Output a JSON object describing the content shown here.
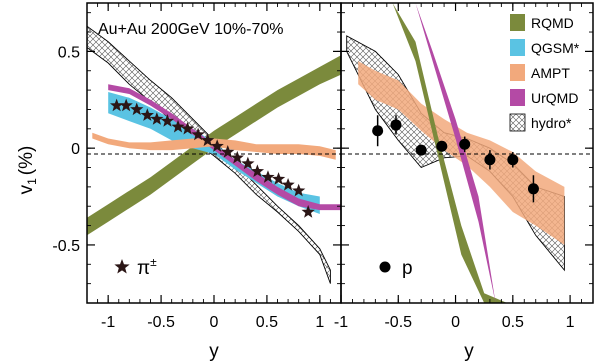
{
  "figure": {
    "ylabel": "v",
    "ylabel_sub": "1",
    "ylabel_unit": "(%)"
  },
  "chart_data": [
    {
      "type": "band",
      "panel": "left",
      "title": "Au+Au 200GeV 10%-70%",
      "xlabel": "y",
      "xlim": [
        -1.2,
        1.2
      ],
      "ylim": [
        -0.8,
        0.75
      ],
      "xticks": [
        -1,
        -0.5,
        0,
        0.5,
        1
      ],
      "xtick_labels": [
        "-1",
        "-0.5",
        "0",
        "0.5",
        "1"
      ],
      "yticks": [
        -0.5,
        0,
        0.5
      ],
      "ytick_labels": [
        "-0.5",
        "0",
        "0.5"
      ],
      "zero_line": true,
      "bands": [
        {
          "model": "hydro",
          "x": [
            -1.2,
            -1.0,
            -0.8,
            -0.6,
            -0.4,
            -0.2,
            0.0,
            0.2,
            0.4,
            0.6,
            0.8,
            1.0,
            1.1
          ],
          "upper": [
            0.63,
            0.55,
            0.45,
            0.35,
            0.26,
            0.15,
            0.04,
            -0.08,
            -0.19,
            -0.3,
            -0.4,
            -0.52,
            -0.63
          ],
          "lower": [
            0.52,
            0.44,
            0.33,
            0.24,
            0.14,
            0.04,
            -0.04,
            -0.13,
            -0.24,
            -0.33,
            -0.43,
            -0.55,
            -0.7
          ]
        },
        {
          "model": "RQMD",
          "x": [
            -1.2,
            -1.0,
            -0.8,
            -0.6,
            -0.4,
            -0.2,
            0.0,
            0.2,
            0.4,
            0.6,
            0.8,
            1.0,
            1.2
          ],
          "upper": [
            -0.36,
            -0.29,
            -0.22,
            -0.15,
            -0.07,
            0.01,
            0.09,
            0.16,
            0.23,
            0.3,
            0.36,
            0.42,
            0.48
          ],
          "lower": [
            -0.45,
            -0.38,
            -0.31,
            -0.24,
            -0.16,
            -0.08,
            0.0,
            0.07,
            0.14,
            0.21,
            0.27,
            0.33,
            0.38
          ]
        },
        {
          "model": "QGSM",
          "x": [
            -1.0,
            -0.8,
            -0.6,
            -0.4,
            -0.2,
            0.0,
            0.2,
            0.4,
            0.6,
            0.8,
            1.0
          ],
          "upper": [
            0.29,
            0.26,
            0.21,
            0.15,
            0.1,
            0.03,
            -0.06,
            -0.12,
            -0.18,
            -0.23,
            -0.25
          ],
          "lower": [
            0.18,
            0.14,
            0.1,
            0.04,
            0.0,
            -0.03,
            -0.11,
            -0.18,
            -0.25,
            -0.3,
            -0.34
          ]
        },
        {
          "model": "UrQMD",
          "x": [
            -1.0,
            -0.8,
            -0.6,
            -0.4,
            -0.2,
            0.0,
            0.2,
            0.4,
            0.6,
            0.8,
            1.0,
            1.2
          ],
          "upper": [
            0.33,
            0.31,
            0.25,
            0.18,
            0.1,
            0.02,
            -0.06,
            -0.13,
            -0.2,
            -0.26,
            -0.29,
            -0.29
          ],
          "lower": [
            0.3,
            0.28,
            0.22,
            0.15,
            0.07,
            -0.01,
            -0.09,
            -0.17,
            -0.24,
            -0.3,
            -0.32,
            -0.32
          ]
        },
        {
          "model": "AMPT",
          "x": [
            -1.15,
            -1.0,
            -0.8,
            -0.6,
            -0.4,
            -0.2,
            0.0,
            0.2,
            0.4,
            0.6,
            0.8,
            1.0,
            1.15
          ],
          "upper": [
            0.08,
            0.05,
            0.03,
            0.03,
            0.04,
            0.05,
            0.05,
            0.04,
            0.02,
            0.02,
            0.02,
            0.01,
            -0.01
          ],
          "lower": [
            0.05,
            0.02,
            0.0,
            -0.01,
            -0.01,
            0.0,
            0.01,
            -0.01,
            -0.02,
            -0.03,
            -0.03,
            -0.04,
            -0.06
          ]
        }
      ],
      "markers": {
        "label": "π",
        "label_sup": "±",
        "symbol": "star",
        "x": [
          -0.92,
          -0.83,
          -0.73,
          -0.63,
          -0.54,
          -0.44,
          -0.34,
          -0.25,
          -0.15,
          -0.06,
          0.03,
          0.13,
          0.22,
          0.32,
          0.41,
          0.51,
          0.61,
          0.7,
          0.8,
          0.89
        ],
        "y": [
          0.22,
          0.22,
          0.2,
          0.17,
          0.15,
          0.14,
          0.11,
          0.1,
          0.07,
          0.04,
          0.01,
          -0.02,
          -0.05,
          -0.08,
          -0.12,
          -0.15,
          -0.16,
          -0.19,
          -0.22,
          -0.33
        ]
      }
    },
    {
      "type": "band",
      "panel": "right",
      "xlabel": "y",
      "xlim": [
        -1.0,
        1.2
      ],
      "ylim": [
        -0.8,
        0.75
      ],
      "xticks": [
        -1,
        -0.5,
        0,
        0.5,
        1
      ],
      "xtick_labels": [
        "-1",
        "-0.5",
        "0",
        "0.5",
        "1"
      ],
      "zero_line": true,
      "legend_position": "top-right",
      "bands": [
        {
          "model": "hydro",
          "x": [
            -0.95,
            -0.7,
            -0.5,
            -0.3,
            -0.1,
            0.1,
            0.3,
            0.5,
            0.7,
            0.95
          ],
          "upper": [
            0.58,
            0.5,
            0.38,
            0.18,
            0.08,
            0.05,
            0.0,
            -0.08,
            -0.2,
            -0.25
          ],
          "lower": [
            0.5,
            0.2,
            0.04,
            -0.1,
            -0.05,
            -0.04,
            -0.12,
            -0.25,
            -0.45,
            -0.63
          ]
        },
        {
          "model": "AMPT",
          "x": [
            -0.85,
            -0.7,
            -0.5,
            -0.3,
            -0.1,
            0.1,
            0.3,
            0.5,
            0.7,
            0.95
          ],
          "upper": [
            0.45,
            0.4,
            0.35,
            0.23,
            0.15,
            0.08,
            0.04,
            -0.02,
            -0.12,
            -0.2
          ],
          "lower": [
            0.33,
            0.25,
            0.2,
            0.09,
            -0.01,
            -0.09,
            -0.2,
            -0.33,
            -0.4,
            -0.5
          ]
        },
        {
          "model": "RQMD",
          "x": [
            -0.55,
            -0.35,
            -0.15,
            0.05,
            0.25,
            0.45
          ],
          "upper": [
            0.75,
            0.55,
            0.05,
            -0.4,
            -0.75,
            -0.8
          ],
          "lower": [
            0.75,
            0.45,
            -0.05,
            -0.55,
            -0.8,
            -0.8
          ]
        },
        {
          "model": "UrQMD",
          "x": [
            -0.35,
            -0.2,
            0.0,
            0.2,
            0.35
          ],
          "upper": [
            0.75,
            0.5,
            0.15,
            -0.25,
            -0.8
          ],
          "lower": [
            0.75,
            0.45,
            0.05,
            -0.38,
            -0.8
          ]
        }
      ],
      "markers": {
        "label": "p",
        "symbol": "circle",
        "x": [
          -0.68,
          -0.52,
          -0.3,
          -0.12,
          0.08,
          0.3,
          0.5,
          0.68
        ],
        "y": [
          0.09,
          0.12,
          -0.01,
          0.01,
          0.02,
          -0.06,
          -0.06,
          -0.21
        ],
        "yerr": [
          0.08,
          0.05,
          0.02,
          0.02,
          0.04,
          0.05,
          0.04,
          0.07
        ]
      }
    }
  ],
  "legend": [
    {
      "model": "RQMD",
      "label": "RQMD",
      "color": "#7b8a3c",
      "pattern": false
    },
    {
      "model": "QGSM",
      "label": "QGSM*",
      "color": "#5ac3e3",
      "pattern": false
    },
    {
      "model": "AMPT",
      "label": "AMPT",
      "color": "#f2a97c",
      "pattern": false
    },
    {
      "model": "UrQMD",
      "label": "UrQMD",
      "color": "#b44aa5",
      "pattern": false
    },
    {
      "model": "hydro",
      "label": "hydro*",
      "color": "#555555",
      "pattern": true
    }
  ]
}
